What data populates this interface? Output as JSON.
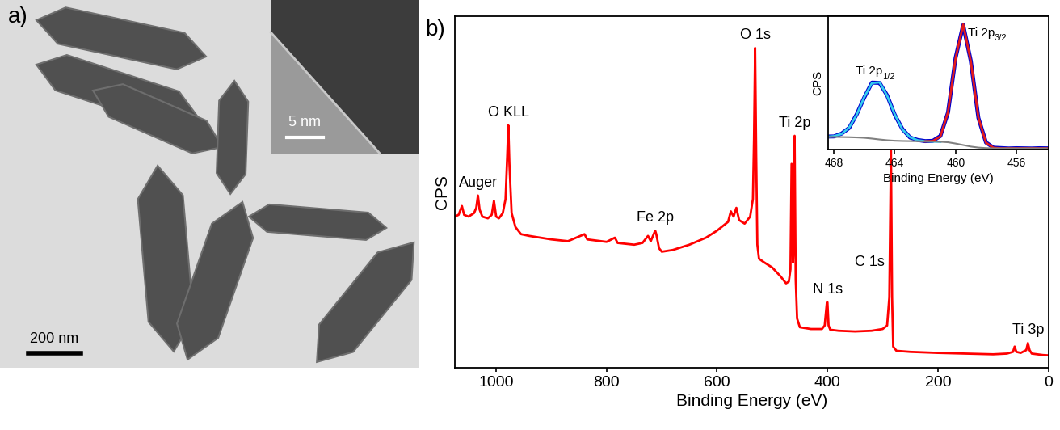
{
  "panel_labels": [
    "a)",
    "b)"
  ],
  "image": {
    "scale_bar": "200 nm",
    "inset_scale_bar": "5 nm"
  },
  "chart_data": [
    {
      "type": "line",
      "x_label": "Binding Energy (eV)",
      "y_label": "CPS",
      "x": [
        1075,
        1068,
        1062,
        1058,
        1050,
        1040,
        1036,
        1033,
        1030,
        1025,
        1015,
        1008,
        1004,
        1000,
        995,
        988,
        983,
        980,
        978,
        976,
        972,
        965,
        955,
        940,
        920,
        900,
        870,
        840,
        835,
        800,
        785,
        780,
        750,
        735,
        725,
        720,
        712,
        710,
        705,
        700,
        680,
        650,
        620,
        600,
        580,
        575,
        570,
        565,
        560,
        550,
        540,
        535,
        533,
        531,
        529,
        527,
        524,
        515,
        500,
        485,
        475,
        470,
        467,
        465,
        462.5,
        461,
        459.5,
        457.5,
        455,
        450,
        430,
        410,
        405,
        401,
        400,
        398,
        395,
        380,
        350,
        320,
        300,
        292,
        288,
        285,
        283,
        281,
        275,
        250,
        200,
        150,
        100,
        75,
        64,
        61,
        58,
        50,
        40,
        37,
        34,
        30,
        20,
        10,
        0
      ],
      "values": [
        43.0,
        43.5,
        46.0,
        43.5,
        43.0,
        44.0,
        45.5,
        49.0,
        45.0,
        43.0,
        42.5,
        43.5,
        47.5,
        43.0,
        42.5,
        44.0,
        48.0,
        60.0,
        69.0,
        58.0,
        44.0,
        40.0,
        38.0,
        37.5,
        37.0,
        36.5,
        36.0,
        38.0,
        36.5,
        35.8,
        37.0,
        35.5,
        35.0,
        35.5,
        37.5,
        36.0,
        39.0,
        38.0,
        34.0,
        33.0,
        33.5,
        35.0,
        37.0,
        39.0,
        41.5,
        44.5,
        43.0,
        45.5,
        42.0,
        41.0,
        43.0,
        48.0,
        65.0,
        91.0,
        60.0,
        35.0,
        31.0,
        30.0,
        28.5,
        26.0,
        24.0,
        24.5,
        28.0,
        58.0,
        30.0,
        35.0,
        66.0,
        25.0,
        14.0,
        11.5,
        11.0,
        11.0,
        12.0,
        18.6,
        18.6,
        12.0,
        10.8,
        10.5,
        10.3,
        10.5,
        11.0,
        12.0,
        20.0,
        62.0,
        20.0,
        6.0,
        4.8,
        4.5,
        4.2,
        4.0,
        3.8,
        4.0,
        4.5,
        6.0,
        4.5,
        4.2,
        5.0,
        7.0,
        5.0,
        4.0,
        3.8,
        3.6,
        3.5
      ],
      "color": "#ff0000",
      "xlim": [
        1075,
        0
      ],
      "xticks": [
        1000,
        800,
        600,
        400,
        200,
        0
      ],
      "ylim": [
        0,
        100
      ],
      "tick_labels": "x",
      "annotations": [
        {
          "text": "Auger",
          "x": 1033
        },
        {
          "text": "O KLL",
          "x": 978
        },
        {
          "text": "Fe 2p",
          "x": 712
        },
        {
          "text": "O 1s",
          "x": 531
        },
        {
          "text": "Ti 2p",
          "x": 459.5
        },
        {
          "text": "N 1s",
          "x": 400
        },
        {
          "text": "C 1s",
          "x": 285
        },
        {
          "text": "Ti 3p",
          "x": 37
        }
      ]
    },
    {
      "type": "line",
      "x_label": "Binding Energy (eV)",
      "y_label": "CPS",
      "x": [
        468.5,
        468.0,
        467.5,
        467.0,
        466.5,
        466.0,
        465.5,
        465.0,
        464.5,
        464.0,
        463.5,
        463.0,
        462.5,
        462.0,
        461.5,
        461.0,
        460.5,
        460.0,
        459.5,
        459.0,
        458.5,
        458.0,
        457.5,
        457.0,
        456.5,
        456.0,
        455.5,
        455.0,
        454.5,
        454.0
      ],
      "series": [
        {
          "color": "#0000cc",
          "values": [
            10.3,
            10.4,
            12.6,
            17.1,
            27.9,
            41.2,
            52.8,
            52.6,
            42.7,
            27.4,
            16.3,
            9.6,
            7.6,
            6.7,
            6.9,
            10.7,
            29.2,
            72.4,
            98.2,
            69.9,
            25.0,
            5.6,
            1.5,
            1.2,
            0.9,
            1.1,
            1.0,
            0.9,
            1.1,
            1.0
          ]
        },
        {
          "color": "#33ccee",
          "values": [
            10.1,
            10.6,
            12.3,
            17.4,
            27.6,
            41.5,
            52.5,
            53.0,
            42.4,
            27.7,
            16.0,
            9.8,
            7.4,
            6.6,
            6.4,
            6.2,
            null,
            null,
            null,
            null,
            null,
            null,
            null,
            null,
            null,
            null,
            null,
            null,
            null,
            null
          ]
        },
        {
          "color": "#e41a1c",
          "values": [
            null,
            null,
            null,
            null,
            null,
            null,
            null,
            null,
            null,
            null,
            null,
            null,
            null,
            6.5,
            6.8,
            10.4,
            29.5,
            72.0,
            98.6,
            69.6,
            25.3,
            5.4,
            1.4,
            1.0,
            1.0,
            1.0,
            1.0,
            1.0,
            1.0,
            1.0
          ]
        },
        {
          "color": "#808080",
          "values": [
            10.0,
            10.0,
            9.9,
            9.8,
            9.6,
            9.3,
            8.7,
            8.0,
            7.4,
            7.0,
            6.8,
            6.7,
            6.6,
            6.5,
            6.4,
            6.2,
            5.8,
            4.8,
            3.6,
            2.4,
            1.6,
            1.2,
            1.0,
            1.0,
            1.0,
            1.0,
            1.0,
            1.0,
            1.0,
            1.0
          ]
        }
      ],
      "xlim": [
        468.4,
        453.9
      ],
      "xticks": [
        468,
        464,
        460,
        456
      ],
      "ylim": [
        0,
        105
      ],
      "tick_labels": "x",
      "annotations": [
        {
          "text": "Ti 2p",
          "subscript": "1/2",
          "x": 465.2
        },
        {
          "text": "Ti 2p",
          "subscript": "3/2",
          "x": 459.5
        }
      ]
    }
  ]
}
